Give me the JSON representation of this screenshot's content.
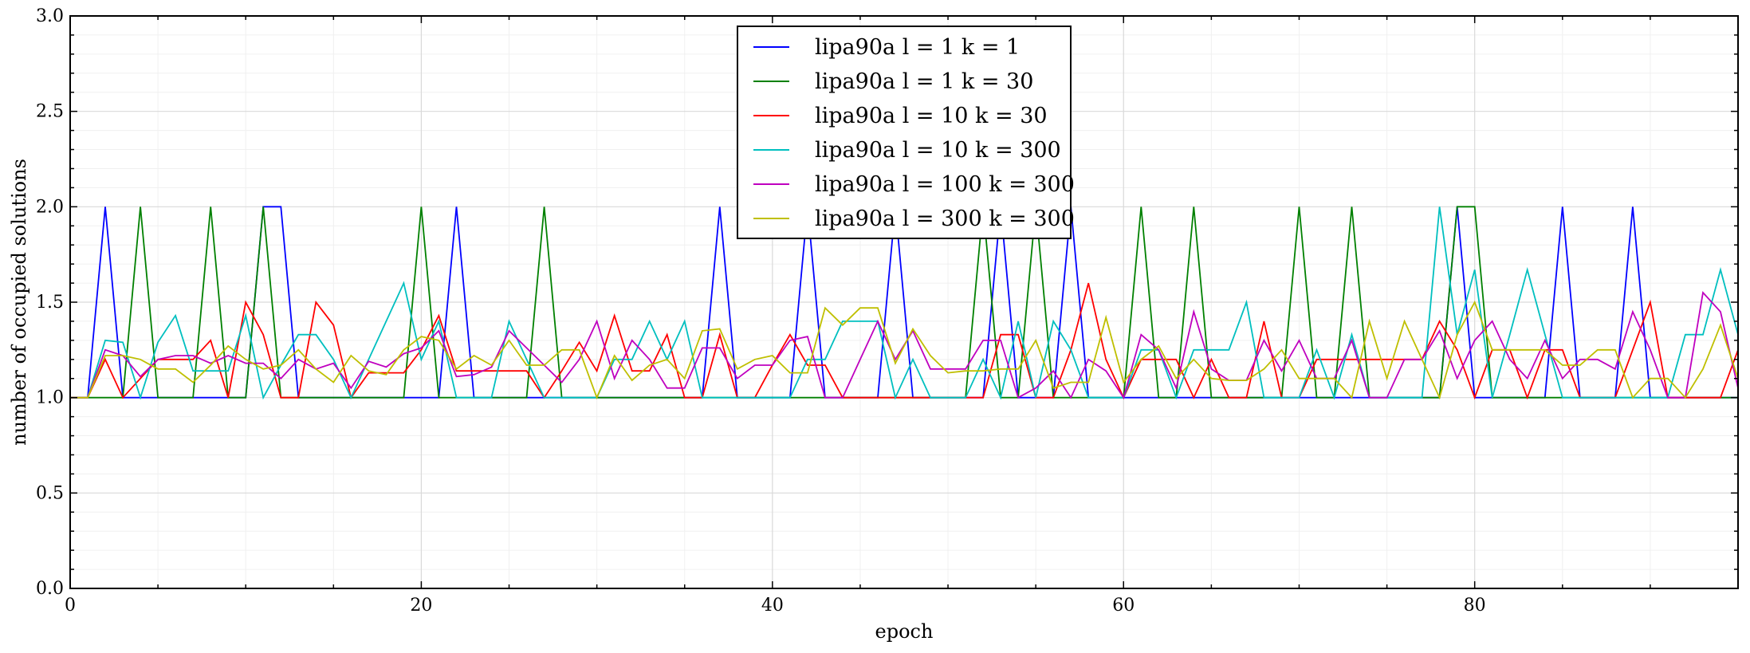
{
  "chart_data": {
    "type": "line",
    "xlabel": "epoch",
    "ylabel": "number of occupied solutions",
    "xlim": [
      0,
      95
    ],
    "ylim": [
      0.0,
      3.0
    ],
    "x_ticks": [
      "0",
      "20",
      "40",
      "60",
      "80"
    ],
    "x_tick_values": [
      0,
      20,
      40,
      60,
      80
    ],
    "y_ticks": [
      "0.0",
      "0.5",
      "1.0",
      "1.5",
      "2.0",
      "2.5",
      "3.0"
    ],
    "y_tick_values": [
      0.0,
      0.5,
      1.0,
      1.5,
      2.0,
      2.5,
      3.0
    ],
    "grid": true,
    "legend_position": "top-center",
    "x": [
      0,
      1,
      2,
      3,
      4,
      5,
      6,
      7,
      8,
      9,
      10,
      11,
      12,
      13,
      14,
      15,
      16,
      17,
      18,
      19,
      20,
      21,
      22,
      23,
      24,
      25,
      26,
      27,
      28,
      29,
      30,
      31,
      32,
      33,
      34,
      35,
      36,
      37,
      38,
      39,
      40,
      41,
      42,
      43,
      44,
      45,
      46,
      47,
      48,
      49,
      50,
      51,
      52,
      53,
      54,
      55,
      56,
      57,
      58,
      59,
      60,
      61,
      62,
      63,
      64,
      65,
      66,
      67,
      68,
      69,
      70,
      71,
      72,
      73,
      74,
      75,
      76,
      77,
      78,
      79,
      80,
      81,
      82,
      83,
      84,
      85,
      86,
      87,
      88,
      89,
      90,
      91,
      92,
      93,
      94,
      95
    ],
    "series": [
      {
        "name": "lipa90a l = 1 k = 1",
        "color": "#0000ff",
        "values": [
          1,
          1,
          2,
          1,
          1,
          1,
          1,
          1,
          1,
          1,
          1,
          2,
          2,
          1,
          1,
          1,
          1,
          1,
          1,
          1,
          1,
          1,
          2,
          1,
          1,
          1,
          1,
          1,
          1,
          1,
          1,
          1,
          1,
          1,
          1,
          1,
          1,
          2,
          1,
          1,
          1,
          1,
          2,
          1,
          1,
          1,
          1,
          2,
          1,
          1,
          1,
          1,
          1,
          2,
          1,
          1,
          1,
          2,
          1,
          1,
          1,
          1,
          1,
          1,
          1,
          1,
          1,
          1,
          1,
          1,
          1,
          1,
          1,
          1,
          1,
          1,
          1,
          1,
          1,
          2,
          1,
          1,
          1,
          1,
          1,
          2,
          1,
          1,
          1,
          2,
          1,
          1,
          1,
          1,
          1,
          1
        ]
      },
      {
        "name": "lipa90a l = 1 k = 30",
        "color": "#008000",
        "values": [
          1,
          1,
          1,
          1,
          2,
          1,
          1,
          1,
          2,
          1,
          1,
          2,
          1,
          1,
          1,
          1,
          1,
          1,
          1,
          1,
          2,
          1,
          1,
          1,
          1,
          1,
          1,
          2,
          1,
          1,
          1,
          1,
          1,
          1,
          1,
          1,
          1,
          1,
          1,
          1,
          1,
          1,
          1,
          1,
          1,
          1,
          1,
          1,
          1,
          1,
          1,
          1,
          2,
          1,
          1,
          2,
          1,
          1,
          1,
          1,
          1,
          2,
          1,
          1,
          2,
          1,
          1,
          1,
          1,
          1,
          2,
          1,
          1,
          2,
          1,
          1,
          1,
          1,
          1,
          2,
          2,
          1,
          1,
          1,
          1,
          1,
          1,
          1,
          1,
          1,
          1,
          1,
          1,
          1,
          1,
          1
        ]
      },
      {
        "name": "lipa90a l = 10 k = 30",
        "color": "#ff0000",
        "values": [
          1,
          1,
          1.2,
          1,
          1.1,
          1.2,
          1.2,
          1.2,
          1.3,
          1,
          1.5,
          1.33,
          1,
          1,
          1.5,
          1.38,
          1,
          1.13,
          1.13,
          1.13,
          1.25,
          1.43,
          1.14,
          1.14,
          1.14,
          1.14,
          1.14,
          1,
          1.14,
          1.29,
          1.14,
          1.43,
          1.14,
          1.14,
          1.33,
          1,
          1,
          1.33,
          1,
          1,
          1.17,
          1.33,
          1.17,
          1.17,
          1,
          1,
          1,
          1,
          1,
          1,
          1,
          1,
          1,
          1.33,
          1.33,
          1,
          1,
          1.25,
          1.6,
          1.2,
          1,
          1.2,
          1.2,
          1.2,
          1,
          1.2,
          1,
          1,
          1.4,
          1,
          1,
          1.2,
          1.2,
          1.2,
          1.2,
          1.2,
          1.2,
          1.2,
          1.4,
          1.25,
          1,
          1.25,
          1.25,
          1,
          1.25,
          1.25,
          1,
          1,
          1,
          1.25,
          1.5,
          1,
          1,
          1,
          1,
          1.25
        ]
      },
      {
        "name": "lipa90a l = 10 k = 300",
        "color": "#00bfbf",
        "values": [
          1,
          1,
          1.3,
          1.29,
          1,
          1.29,
          1.43,
          1.14,
          1.14,
          1.14,
          1.43,
          1,
          1.17,
          1.33,
          1.33,
          1.2,
          1,
          1.2,
          1.4,
          1.6,
          1.2,
          1.4,
          1,
          1,
          1,
          1.4,
          1.2,
          1,
          1,
          1,
          1,
          1.2,
          1.2,
          1.4,
          1.2,
          1.4,
          1,
          1,
          1,
          1,
          1,
          1,
          1.2,
          1.2,
          1.4,
          1.4,
          1.4,
          1,
          1.2,
          1,
          1,
          1,
          1.2,
          1,
          1.4,
          1,
          1.4,
          1.25,
          1,
          1,
          1,
          1.25,
          1.25,
          1,
          1.25,
          1.25,
          1.25,
          1.5,
          1,
          1,
          1,
          1.25,
          1,
          1.33,
          1,
          1,
          1,
          1,
          2,
          1.33,
          1.67,
          1,
          1.33,
          1.67,
          1.33,
          1,
          1,
          1,
          1,
          1,
          1,
          1,
          1.33,
          1.33,
          1.67,
          1.33
        ]
      },
      {
        "name": "lipa90a l = 100 k = 300",
        "color": "#bf00bf",
        "values": [
          1,
          1,
          1.25,
          1.22,
          1.11,
          1.2,
          1.22,
          1.22,
          1.18,
          1.22,
          1.18,
          1.18,
          1.1,
          1.2,
          1.15,
          1.18,
          1.05,
          1.19,
          1.16,
          1.23,
          1.26,
          1.35,
          1.11,
          1.12,
          1.16,
          1.35,
          1.26,
          1.17,
          1.08,
          1.2,
          1.4,
          1.1,
          1.3,
          1.2,
          1.05,
          1.05,
          1.26,
          1.26,
          1.1,
          1.17,
          1.17,
          1.3,
          1.32,
          1,
          1,
          1.2,
          1.4,
          1.2,
          1.35,
          1.15,
          1.15,
          1.15,
          1.3,
          1.3,
          1,
          1.05,
          1.14,
          1,
          1.2,
          1.14,
          1,
          1.33,
          1.25,
          1.05,
          1.45,
          1.15,
          1.09,
          1.09,
          1.3,
          1.14,
          1.3,
          1.1,
          1.1,
          1.3,
          1,
          1,
          1.2,
          1.2,
          1.35,
          1.1,
          1.3,
          1.4,
          1.2,
          1.1,
          1.3,
          1.1,
          1.2,
          1.2,
          1.15,
          1.45,
          1.25,
          1,
          1,
          1.55,
          1.45,
          1.05
        ]
      },
      {
        "name": "lipa90a l = 300 k = 300",
        "color": "#bfbf00",
        "values": [
          1,
          1,
          1.22,
          1.22,
          1.2,
          1.15,
          1.15,
          1.08,
          1.17,
          1.27,
          1.2,
          1.15,
          1.17,
          1.25,
          1.15,
          1.08,
          1.22,
          1.14,
          1.12,
          1.25,
          1.32,
          1.3,
          1.15,
          1.22,
          1.17,
          1.3,
          1.17,
          1.17,
          1.25,
          1.25,
          1,
          1.22,
          1.09,
          1.17,
          1.2,
          1.1,
          1.35,
          1.36,
          1.15,
          1.2,
          1.22,
          1.13,
          1.13,
          1.47,
          1.38,
          1.47,
          1.47,
          1.18,
          1.36,
          1.22,
          1.13,
          1.14,
          1.14,
          1.15,
          1.15,
          1.3,
          1.05,
          1.08,
          1.08,
          1.42,
          1.08,
          1.2,
          1.27,
          1.1,
          1.2,
          1.1,
          1.09,
          1.09,
          1.15,
          1.25,
          1.1,
          1.1,
          1.1,
          1,
          1.4,
          1.1,
          1.4,
          1.2,
          1,
          1.33,
          1.5,
          1.25,
          1.25,
          1.25,
          1.25,
          1.17,
          1.17,
          1.25,
          1.25,
          1,
          1.1,
          1.1,
          1,
          1.15,
          1.38,
          1.1
        ]
      }
    ]
  }
}
